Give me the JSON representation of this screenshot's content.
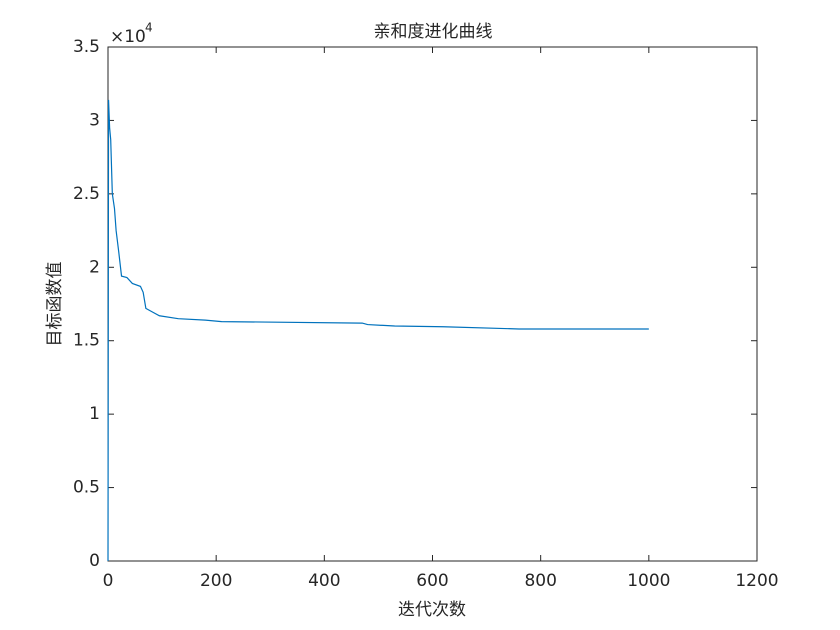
{
  "chart_data": {
    "type": "line",
    "title": "亲和度进化曲线",
    "x_label": "迭代次数",
    "y_label": "目标函数值",
    "y_multiplier_base": "×10",
    "y_multiplier_exponent": "4",
    "x": [
      0,
      1,
      3,
      5,
      8,
      12,
      15,
      20,
      25,
      35,
      45,
      60,
      65,
      70,
      80,
      95,
      130,
      180,
      210,
      470,
      480,
      530,
      620,
      760,
      1000
    ],
    "series": [
      {
        "name": "目标函数值",
        "color": "#0072bd",
        "values": [
          0,
          31400,
          29500,
          28700,
          25000,
          24000,
          22500,
          21000,
          19400,
          19300,
          18900,
          18700,
          18300,
          17200,
          17000,
          16700,
          16500,
          16400,
          16300,
          16200,
          16100,
          16000,
          15950,
          15800,
          15800
        ]
      }
    ],
    "xlim": [
      0,
      1200
    ],
    "xticks": [
      0,
      200,
      400,
      600,
      800,
      1000,
      1200
    ],
    "ylim": [
      0,
      35000
    ],
    "yticks": [
      0,
      {
        "value": 5000,
        "label": "0.5"
      },
      {
        "value": 10000,
        "label": "1"
      },
      {
        "value": 15000,
        "label": "1.5"
      },
      {
        "value": 20000,
        "label": "2"
      },
      {
        "value": 25000,
        "label": "2.5"
      },
      {
        "value": 30000,
        "label": "3"
      },
      {
        "value": 35000,
        "label": "3.5"
      }
    ],
    "grid": false
  }
}
